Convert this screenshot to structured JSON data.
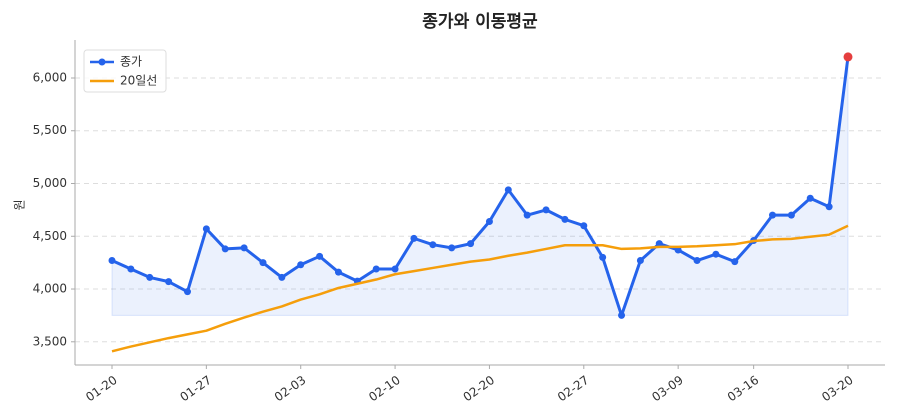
{
  "chart_data": {
    "type": "line",
    "title": "종가와 이동평균",
    "ylabel": "원",
    "categories": [
      "01-20",
      null,
      null,
      null,
      null,
      "01-27",
      null,
      null,
      null,
      null,
      "02-03",
      null,
      null,
      null,
      null,
      "02-10",
      null,
      null,
      null,
      null,
      "02-20",
      null,
      null,
      null,
      null,
      "02-27",
      null,
      null,
      null,
      null,
      "03-09",
      null,
      null,
      null,
      "03-16",
      null,
      null,
      null,
      null,
      "03-20"
    ],
    "series": [
      {
        "name": "종가",
        "color": "#2563eb",
        "markers": true,
        "fill": true,
        "values": [
          4270,
          4190,
          4110,
          4070,
          3975,
          4570,
          4380,
          4390,
          4250,
          4110,
          4230,
          4310,
          4160,
          4075,
          4190,
          4190,
          4480,
          4420,
          4390,
          4430,
          4640,
          4940,
          4700,
          4750,
          4660,
          4600,
          4300,
          3750,
          4270,
          4430,
          4370,
          4270,
          4330,
          4260,
          4460,
          4700,
          4700,
          4860,
          4780,
          6200
        ]
      },
      {
        "name": "20일선",
        "color": "#f59e0b",
        "markers": false,
        "fill": false,
        "values": [
          3410,
          3455,
          3495,
          3535,
          3570,
          3605,
          3670,
          3730,
          3785,
          3835,
          3900,
          3950,
          4010,
          4050,
          4090,
          4140,
          4170,
          4200,
          4230,
          4260,
          4280,
          4315,
          4345,
          4380,
          4415,
          4415,
          4415,
          4380,
          4385,
          4400,
          4400,
          4405,
          4415,
          4425,
          4455,
          4470,
          4475,
          4495,
          4515,
          4600
        ]
      }
    ],
    "highlight_last_color": "#e53e3e",
    "ylim": [
      3280,
      6360
    ],
    "yticks": [
      {
        "value": 3500,
        "label": "3,500"
      },
      {
        "value": 4000,
        "label": "4,000"
      },
      {
        "value": 4500,
        "label": "4,500"
      },
      {
        "value": 5000,
        "label": "5,000"
      },
      {
        "value": 5500,
        "label": "5,500"
      },
      {
        "value": 6000,
        "label": "6,000"
      }
    ],
    "grid": true,
    "legend": "upper-left"
  }
}
